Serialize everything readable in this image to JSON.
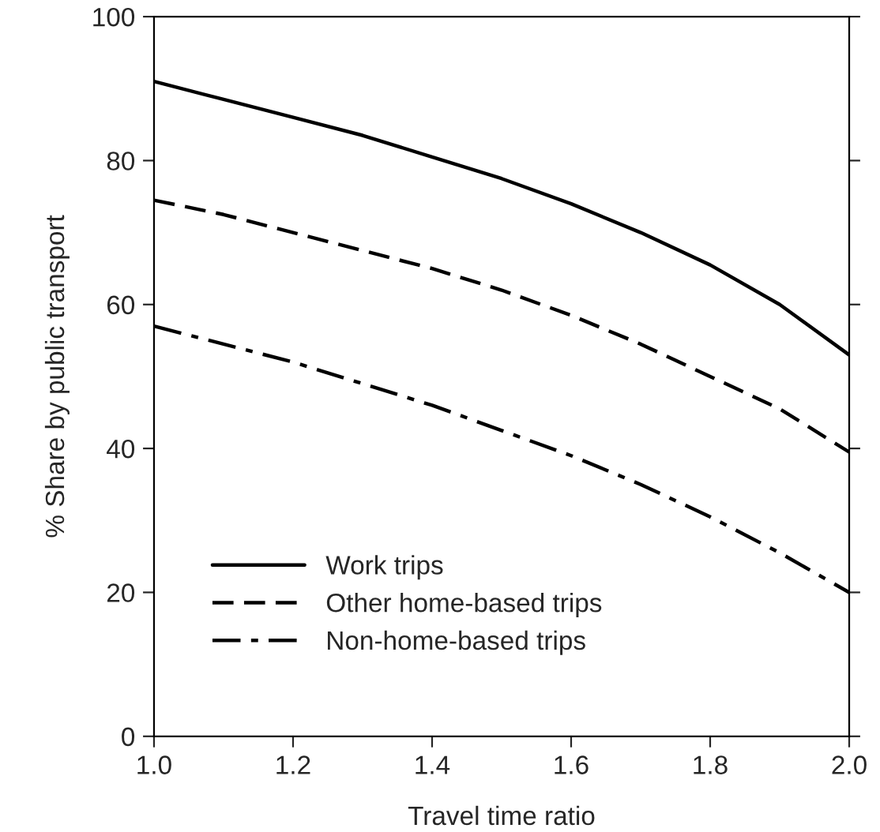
{
  "chart_data": {
    "type": "line",
    "xlabel": "Travel time ratio",
    "ylabel": "% Share by public transport",
    "x": [
      1.0,
      1.1,
      1.2,
      1.3,
      1.4,
      1.5,
      1.6,
      1.7,
      1.8,
      1.9,
      2.0
    ],
    "series": [
      {
        "name": "Work trips",
        "color": "#000000",
        "line_style": "solid",
        "values": [
          91,
          88.5,
          86,
          83.5,
          80.5,
          77.5,
          74,
          70,
          65.5,
          60,
          53
        ]
      },
      {
        "name": "Other home-based trips",
        "color": "#000000",
        "line_style": "dashed",
        "values": [
          74.5,
          72.5,
          70,
          67.5,
          65,
          62,
          58.5,
          54.5,
          50,
          45.5,
          39.5
        ]
      },
      {
        "name": "Non-home-based trips",
        "color": "#000000",
        "line_style": "dashdot",
        "values": [
          57,
          54.5,
          52,
          49,
          46,
          42.5,
          39,
          35,
          30.5,
          25.5,
          20
        ]
      }
    ],
    "xlim": [
      1.0,
      2.0
    ],
    "xticks": [
      {
        "value": 1.0,
        "label": "1.0"
      },
      1.2,
      1.4,
      1.6,
      1.8,
      {
        "value": 2.0,
        "label": "2.0"
      }
    ],
    "ylim": [
      0,
      100
    ],
    "yticks": [
      0,
      20,
      40,
      60,
      80,
      100
    ],
    "grid": false,
    "legend": "bottom left",
    "marker": "none"
  }
}
